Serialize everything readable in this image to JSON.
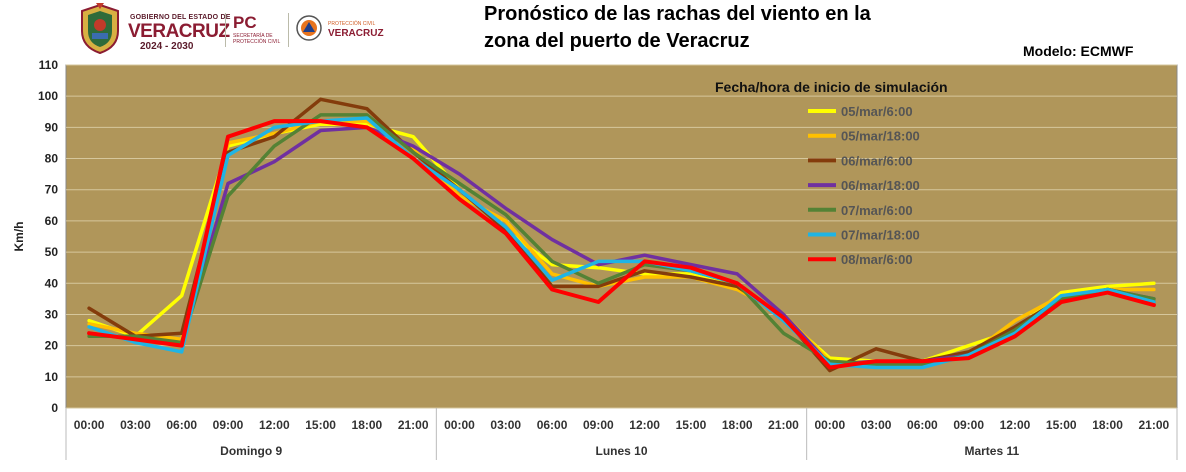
{
  "header": {
    "logo": {
      "gov_small": "GOBIERNO DEL ESTADO DE",
      "gov_big": "VERACRUZ",
      "gov_years": "2024 - 2030",
      "pc_big": "PC",
      "pc_small": "SECRETARÍA DE PROTECCIÓN CIVIL",
      "pcv_small": "PROTECCIÓN CIVIL",
      "pcv_big": "VERACRUZ"
    },
    "title_line1": "Pronóstico de las rachas del viento en la",
    "title_line2": "zona del puerto de Veracruz",
    "model_label": "Modelo: ECMWF"
  },
  "chart_data": {
    "type": "line",
    "title": "Pronóstico de las rachas del viento en la zona del puerto de Veracruz",
    "subtitle": "Modelo: ECMWF",
    "ylabel": "Km/h",
    "ylim": [
      0,
      110
    ],
    "yticks": [
      0,
      10,
      20,
      30,
      40,
      50,
      60,
      70,
      80,
      90,
      100,
      110
    ],
    "grid": true,
    "plot_background": "#b0965a",
    "legend_title": "Fecha/hora de inicio de simulación",
    "legend_placement": "top-right",
    "x": [
      "00:00",
      "03:00",
      "06:00",
      "09:00",
      "12:00",
      "15:00",
      "18:00",
      "21:00",
      "00:00",
      "03:00",
      "06:00",
      "09:00",
      "12:00",
      "15:00",
      "18:00",
      "21:00",
      "00:00",
      "03:00",
      "06:00",
      "09:00",
      "12:00",
      "15:00",
      "18:00",
      "21:00"
    ],
    "day_groups": [
      {
        "label": "Domingo 9",
        "count": 8
      },
      {
        "label": "Lunes 10",
        "count": 8
      },
      {
        "label": "Martes 11",
        "count": 8
      }
    ],
    "series": [
      {
        "name": "05/mar/6:00",
        "color": "#ffff00",
        "values": [
          28,
          23,
          36,
          84,
          88,
          91,
          91,
          87,
          70,
          57,
          46,
          45,
          43,
          43,
          39,
          29,
          16,
          15,
          15,
          20,
          25,
          37,
          39,
          40
        ]
      },
      {
        "name": "05/mar/18:00",
        "color": "#ffc000",
        "values": [
          27,
          24,
          22,
          85,
          88,
          92,
          92,
          83,
          68,
          60,
          43,
          39,
          42,
          42,
          38,
          30,
          15,
          14,
          14,
          17,
          28,
          36,
          38,
          38
        ]
      },
      {
        "name": "06/mar/6:00",
        "color": "#843c0c",
        "values": [
          32,
          23,
          24,
          82,
          87,
          99,
          96,
          82,
          70,
          57,
          39,
          39,
          44,
          42,
          39,
          29,
          12,
          19,
          15,
          18,
          26,
          35,
          38,
          34
        ]
      },
      {
        "name": "06/mar/18:00",
        "color": "#7030a0",
        "values": [
          24,
          22,
          21,
          72,
          79,
          89,
          90,
          84,
          75,
          64,
          54,
          46,
          49,
          46,
          43,
          30,
          14,
          15,
          15,
          17,
          24,
          34,
          38,
          35
        ]
      },
      {
        "name": "07/mar/6:00",
        "color": "#548235",
        "values": [
          23,
          23,
          21,
          68,
          84,
          94,
          94,
          82,
          72,
          62,
          47,
          40,
          46,
          44,
          40,
          24,
          15,
          14,
          14,
          17,
          25,
          35,
          38,
          35
        ]
      },
      {
        "name": "07/mar/18:00",
        "color": "#1fb4e4",
        "values": [
          26,
          21,
          18,
          81,
          90,
          92,
          93,
          80,
          70,
          58,
          41,
          47,
          47,
          44,
          40,
          28,
          14,
          13,
          13,
          17,
          24,
          36,
          38,
          34
        ]
      },
      {
        "name": "08/mar/6:00",
        "color": "#ff0000",
        "values": [
          24,
          22,
          20,
          87,
          92,
          92,
          90,
          80,
          67,
          56,
          38,
          34,
          47,
          45,
          40,
          29,
          13,
          15,
          15,
          16,
          23,
          34,
          37,
          33
        ]
      }
    ]
  }
}
